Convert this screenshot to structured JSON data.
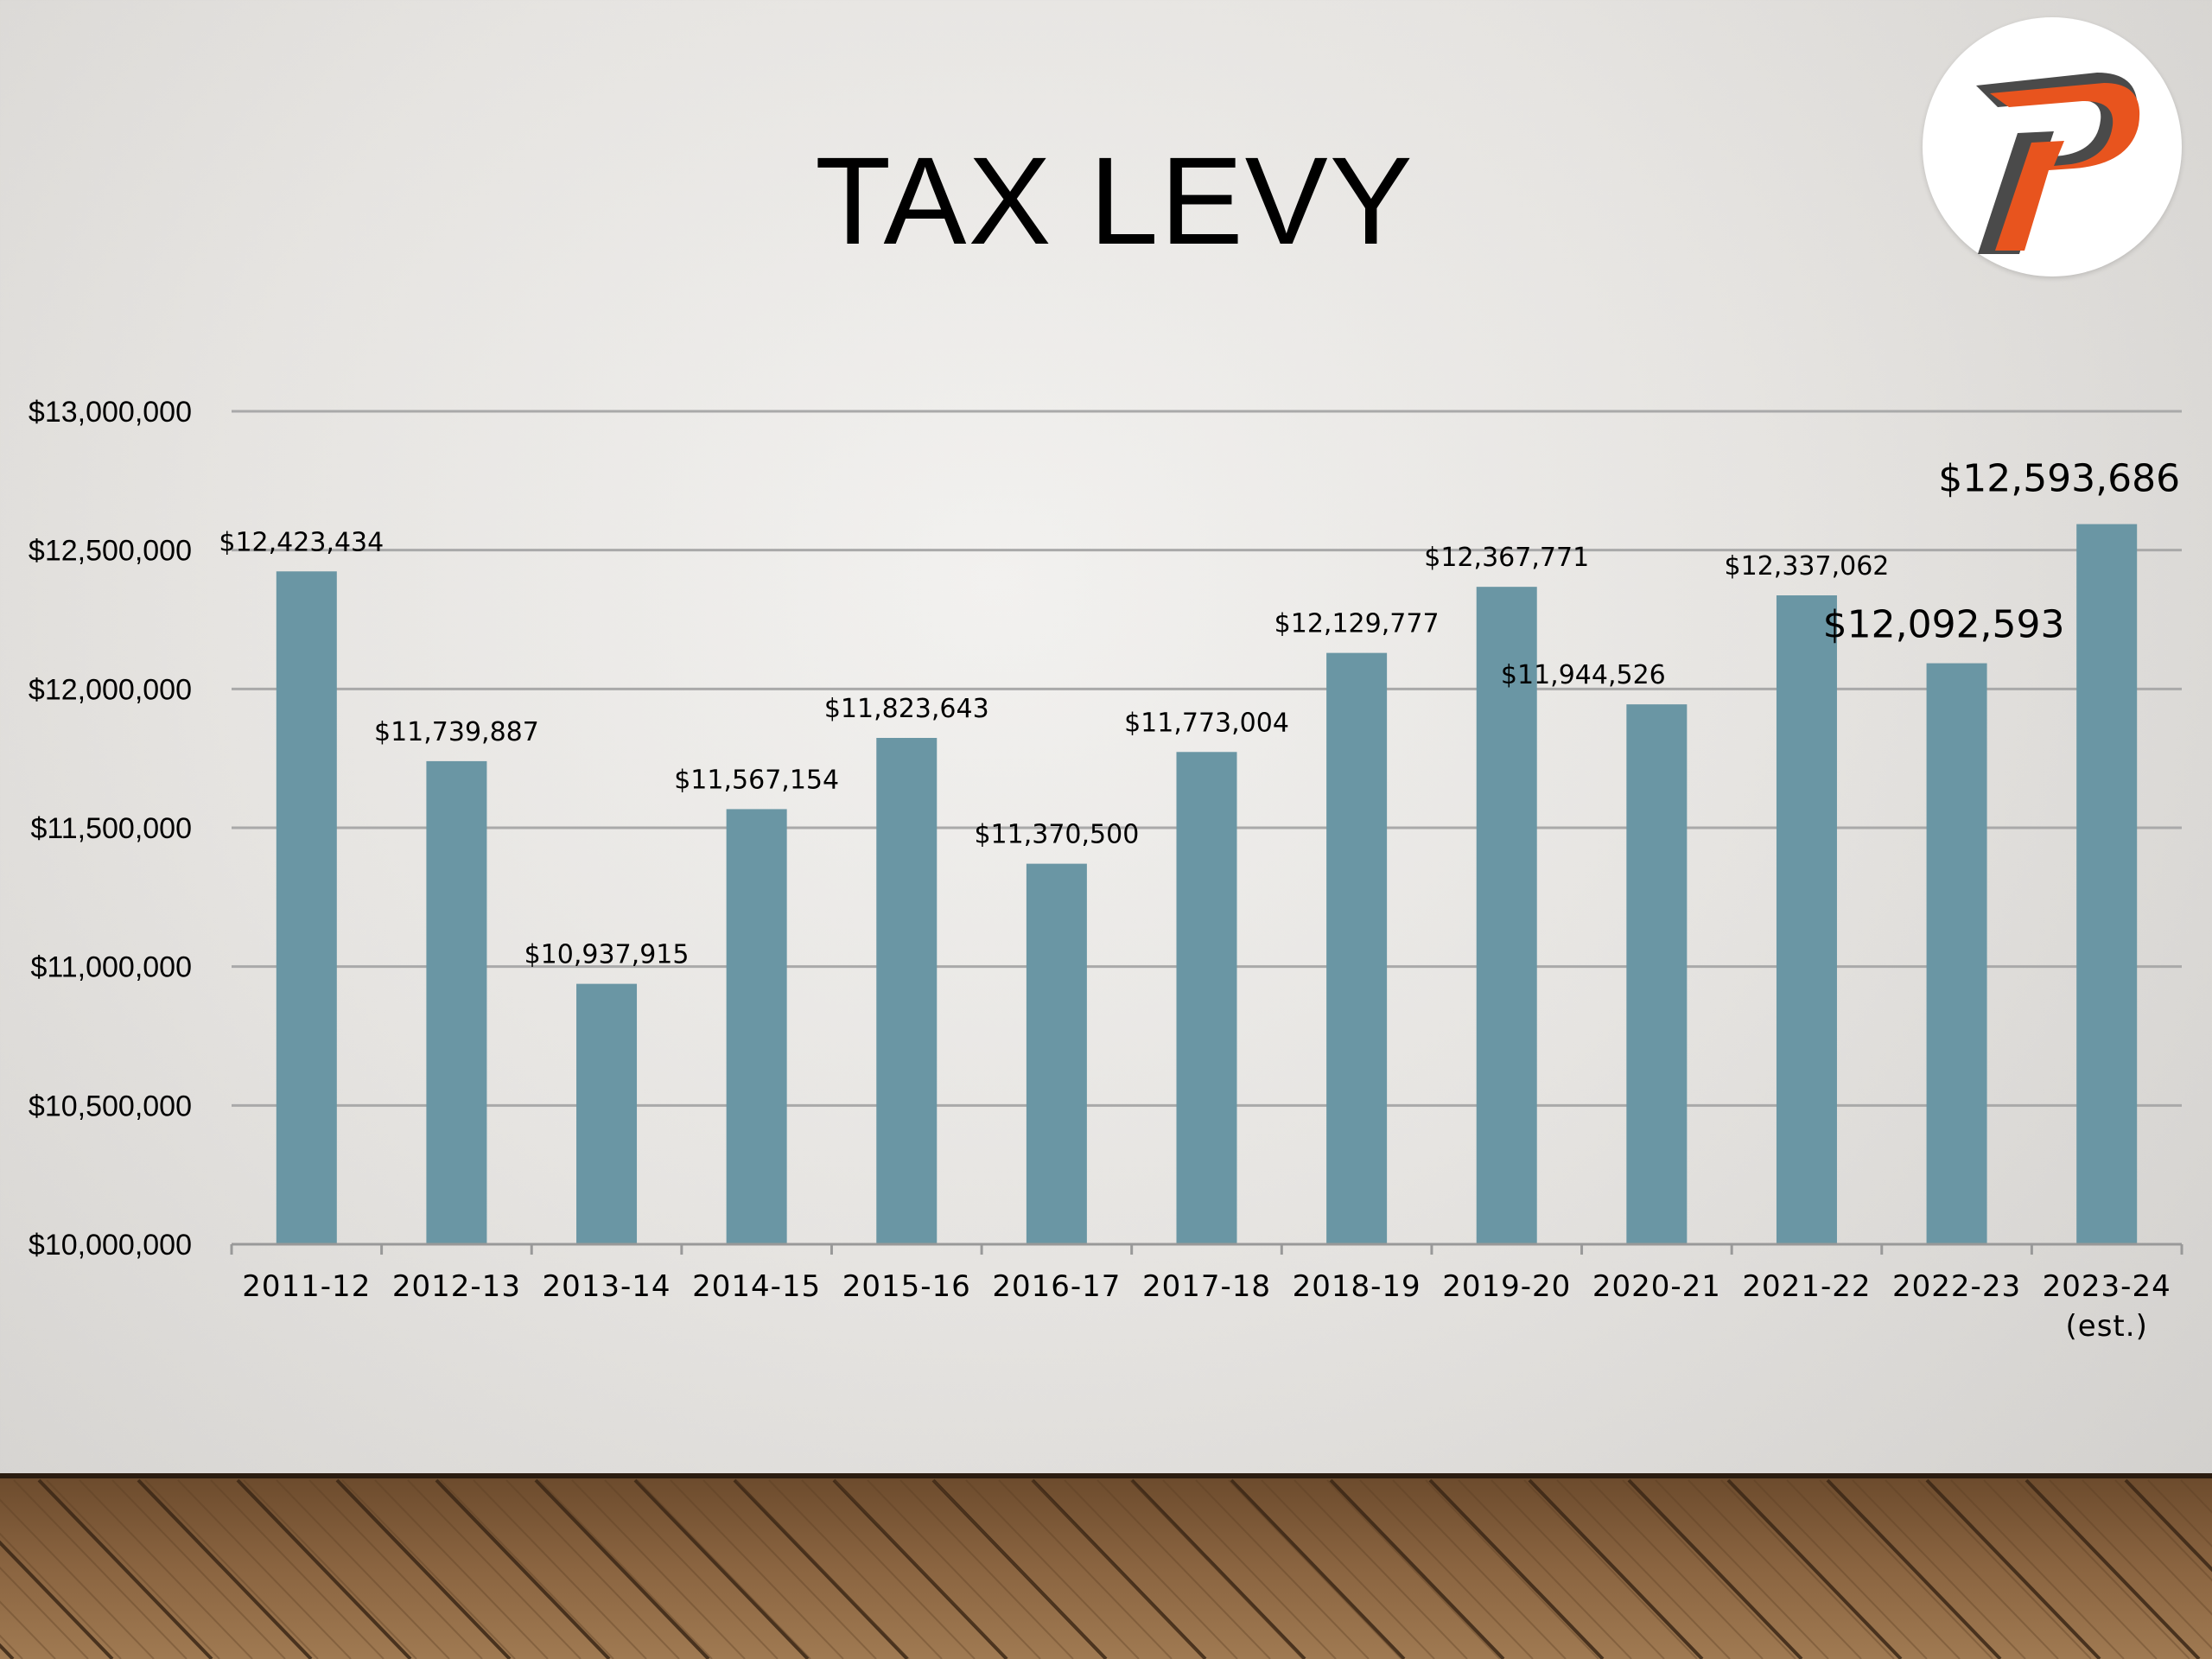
{
  "slide": {
    "title": "TAX LEVY"
  },
  "logo": {
    "letter": "P",
    "colors": {
      "fill": "#e8541e",
      "outline": "#4a4a4a"
    }
  },
  "colors": {
    "bar": "#6a96a4",
    "grid": "#a9a9a9",
    "axis": "#999999"
  },
  "chart_data": {
    "type": "bar",
    "categories": [
      "2011-12",
      "2012-13",
      "2013-14",
      "2014-15",
      "2015-16",
      "2016-17",
      "2017-18",
      "2018-19",
      "2019-20",
      "2020-21",
      "2021-22",
      "2022-23",
      "2023-24"
    ],
    "category_notes": [
      "",
      "",
      "",
      "",
      "",
      "",
      "",
      "",
      "",
      "",
      "",
      "",
      "(est.)"
    ],
    "values": [
      12423434,
      11739887,
      10937915,
      11567154,
      11823643,
      11370500,
      11773004,
      12129777,
      12367771,
      11944526,
      12337062,
      12092593,
      12593686
    ],
    "data_labels": [
      "$12,423,434",
      "$11,739,887",
      "$10,937,915",
      "$11,567,154",
      "$11,823,643",
      "$11,370,500",
      "$11,773,004",
      "$12,129,777",
      "$12,367,771",
      "$11,944,526",
      "$12,337,062",
      "$12,092,593",
      "$12,593,686"
    ],
    "emphasized_labels": [
      11,
      12
    ],
    "ylim": [
      10000000,
      13000000
    ],
    "yticks": [
      10000000,
      10500000,
      11000000,
      11500000,
      12000000,
      12500000,
      13000000
    ],
    "ytick_labels": [
      "$10,000,000",
      "$10,500,000",
      "$11,000,000",
      "$11,500,000",
      "$12,000,000",
      "$12,500,000",
      "$13,000,000"
    ],
    "grid": true,
    "legend": false,
    "xlabel": "",
    "ylabel": ""
  }
}
